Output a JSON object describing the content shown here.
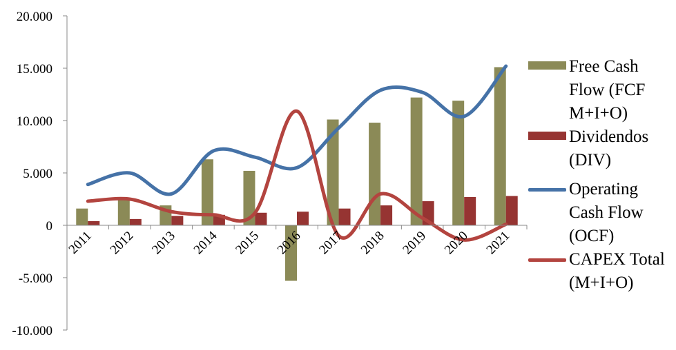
{
  "chart_data": {
    "type": "bar",
    "categories": [
      "2011",
      "2012",
      "2013",
      "2014",
      "2015",
      "2016",
      "2017",
      "2018",
      "2019",
      "2020",
      "2021"
    ],
    "ylim": [
      -10000,
      20000
    ],
    "yticks": [
      -10000,
      -5000,
      0,
      5000,
      10000,
      15000,
      20000
    ],
    "ytick_labels": [
      "-10.000",
      "-5.000",
      "0",
      "5.000",
      "10.000",
      "15.000",
      "20.000"
    ],
    "series": [
      {
        "name": "Free Cash Flow (FCF M+I+O)",
        "kind": "bar",
        "color": "#8b8a57",
        "values": [
          1600,
          2600,
          1900,
          6300,
          5200,
          -5300,
          10100,
          9800,
          12200,
          11900,
          15100
        ]
      },
      {
        "name": "Dividendos (DIV)",
        "kind": "bar",
        "color": "#963432",
        "values": [
          400,
          600,
          900,
          1000,
          1200,
          1300,
          1600,
          1900,
          2300,
          2700,
          2800
        ]
      },
      {
        "name": "Operating Cash Flow (OCF)",
        "kind": "line",
        "color": "#4572a7",
        "values": [
          3900,
          5000,
          3000,
          7100,
          6500,
          5500,
          9300,
          12900,
          12700,
          10400,
          15200
        ]
      },
      {
        "name": "CAPEX Total (M+I+O)",
        "kind": "line",
        "color": "#b3443f",
        "values": [
          2300,
          2500,
          1300,
          1000,
          1200,
          10900,
          -1000,
          3000,
          700,
          -1400,
          100
        ]
      }
    ],
    "legend_position": "right",
    "grid": false
  }
}
